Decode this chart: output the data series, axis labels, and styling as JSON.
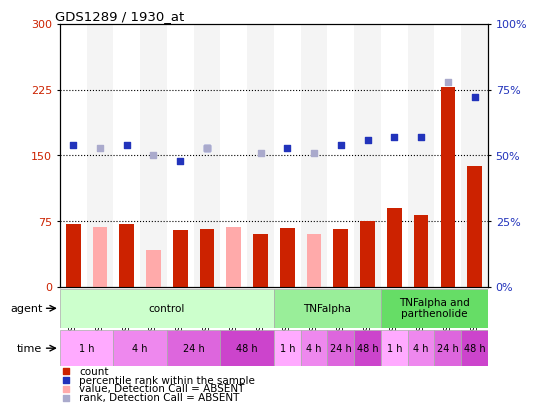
{
  "title": "GDS1289 / 1930_at",
  "samples": [
    "GSM47302",
    "GSM47304",
    "GSM47305",
    "GSM47306",
    "GSM47307",
    "GSM47308",
    "GSM47309",
    "GSM47310",
    "GSM47311",
    "GSM47312",
    "GSM47313",
    "GSM47314",
    "GSM47315",
    "GSM47316",
    "GSM47318",
    "GSM47320"
  ],
  "count_values": [
    72,
    null,
    72,
    null,
    65,
    66,
    null,
    60,
    67,
    null,
    66,
    75,
    90,
    82,
    228,
    138
  ],
  "count_absent": [
    null,
    68,
    null,
    42,
    null,
    null,
    68,
    null,
    null,
    60,
    null,
    null,
    null,
    null,
    null,
    null
  ],
  "rank_values": [
    54,
    null,
    54,
    null,
    48,
    53,
    null,
    null,
    53,
    null,
    54,
    56,
    57,
    57,
    null,
    72
  ],
  "rank_absent": [
    null,
    53,
    null,
    50,
    null,
    53,
    null,
    51,
    null,
    51,
    null,
    null,
    null,
    null,
    78,
    null
  ],
  "ylim_left": [
    0,
    300
  ],
  "ylim_right": [
    0,
    100
  ],
  "yticks_left": [
    0,
    75,
    150,
    225,
    300
  ],
  "yticks_right": [
    0,
    25,
    50,
    75,
    100
  ],
  "ytick_labels_left": [
    "0",
    "75",
    "150",
    "225",
    "300"
  ],
  "ytick_labels_right": [
    "0%",
    "25%",
    "50%",
    "75%",
    "100%"
  ],
  "hlines": [
    75,
    150,
    225
  ],
  "agent_groups": [
    {
      "label": "control",
      "start": 0,
      "end": 8,
      "color": "#ccffcc"
    },
    {
      "label": "TNFalpha",
      "start": 8,
      "end": 12,
      "color": "#99ee99"
    },
    {
      "label": "TNFalpha and\nparthenolide",
      "start": 12,
      "end": 16,
      "color": "#66dd66"
    }
  ],
  "time_groups": [
    {
      "label": "1 h",
      "start": 0,
      "end": 2,
      "color": "#ffaaff"
    },
    {
      "label": "4 h",
      "start": 2,
      "end": 4,
      "color": "#ee88ee"
    },
    {
      "label": "24 h",
      "start": 4,
      "end": 6,
      "color": "#dd66dd"
    },
    {
      "label": "48 h",
      "start": 6,
      "end": 8,
      "color": "#cc44cc"
    },
    {
      "label": "1 h",
      "start": 8,
      "end": 9,
      "color": "#ffaaff"
    },
    {
      "label": "4 h",
      "start": 9,
      "end": 10,
      "color": "#ee88ee"
    },
    {
      "label": "24 h",
      "start": 10,
      "end": 11,
      "color": "#dd66dd"
    },
    {
      "label": "48 h",
      "start": 11,
      "end": 12,
      "color": "#cc44cc"
    },
    {
      "label": "1 h",
      "start": 12,
      "end": 13,
      "color": "#ffaaff"
    },
    {
      "label": "4 h",
      "start": 13,
      "end": 14,
      "color": "#ee88ee"
    },
    {
      "label": "24 h",
      "start": 14,
      "end": 15,
      "color": "#dd66dd"
    },
    {
      "label": "48 h",
      "start": 15,
      "end": 16,
      "color": "#cc44cc"
    }
  ],
  "bar_color": "#cc2200",
  "bar_absent_color": "#ffaaaa",
  "rank_color": "#2233bb",
  "rank_absent_color": "#aaaacc",
  "left_label_color": "#cc2200",
  "right_label_color": "#2233bb",
  "background_color": "#ffffff",
  "sample_bg_color": "#e0e0e0",
  "bar_width": 0.55
}
